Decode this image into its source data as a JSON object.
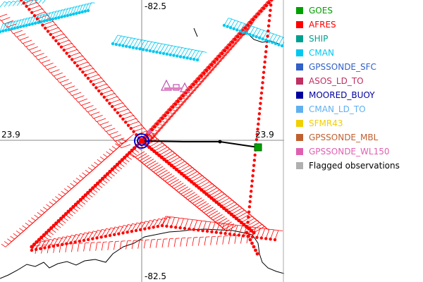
{
  "map": {
    "labels": {
      "lon_top": "-82.5",
      "lon_bottom": "-82.5",
      "lat_left": "23.9",
      "lat_right": "23.9"
    }
  },
  "legend": {
    "items": [
      {
        "name": "legend-goes",
        "label": "GOES",
        "color": "#00a000"
      },
      {
        "name": "legend-afres",
        "label": "AFRES",
        "color": "#ff0000"
      },
      {
        "name": "legend-ship",
        "label": "SHIP",
        "color": "#00a090"
      },
      {
        "name": "legend-cman",
        "label": "CMAN",
        "color": "#00c8f0"
      },
      {
        "name": "legend-gpssonde-sfc",
        "label": "GPSSONDE_SFC",
        "color": "#3060c8"
      },
      {
        "name": "legend-asos-ld-to",
        "label": "ASOS_LD_TO",
        "color": "#c03060"
      },
      {
        "name": "legend-moored-buoy",
        "label": "MOORED_BUOY",
        "color": "#0000a0"
      },
      {
        "name": "legend-cman-ld-to",
        "label": "CMAN_LD_TO",
        "color": "#60b0f0"
      },
      {
        "name": "legend-sfmr43",
        "label": "SFMR43",
        "color": "#f0d000"
      },
      {
        "name": "legend-gpssonde-mbl",
        "label": "GPSSONDE_MBL",
        "color": "#c06030"
      },
      {
        "name": "legend-gpssonde-wl150",
        "label": "GPSSONDE_WL150",
        "color": "#e060b0"
      },
      {
        "name": "legend-flagged",
        "label": "Flagged observations",
        "color": "#b0b0b0"
      }
    ]
  }
}
